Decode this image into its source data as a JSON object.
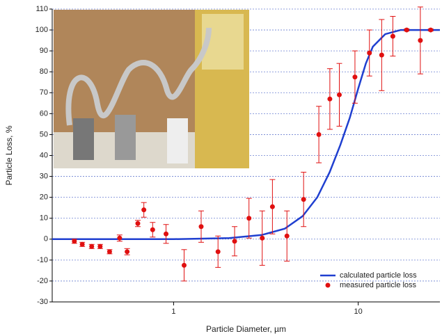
{
  "chart_data": {
    "type": "line",
    "x_label": "Particle Diameter, µm",
    "y_label": "Particle Loss, %",
    "xlim": [
      0.22,
      27.7
    ],
    "xscale": "log",
    "xticks": [
      1,
      10
    ],
    "ylim": [
      -30,
      110
    ],
    "yticks": [
      -30,
      -20,
      -10,
      0,
      10,
      20,
      30,
      40,
      50,
      60,
      70,
      80,
      90,
      100,
      110
    ],
    "grid": true,
    "legend": "lower right",
    "series": [
      {
        "name": "calculated particle loss",
        "type": "line",
        "color": "#1f3fd0",
        "x": [
          0.22,
          1,
          2,
          3,
          4,
          5,
          6,
          7,
          8,
          9,
          10,
          11,
          12,
          14,
          17,
          20,
          27.7
        ],
        "values": [
          0,
          0,
          0.5,
          2,
          5,
          11,
          20,
          32,
          45,
          58,
          72,
          84,
          92,
          98,
          100,
          100,
          100
        ]
      },
      {
        "name": "measured particle loss",
        "type": "scatter",
        "color": "#e01010",
        "x": [
          0.29,
          0.32,
          0.36,
          0.4,
          0.45,
          0.51,
          0.56,
          0.64,
          0.69,
          0.77,
          0.91,
          1.14,
          1.41,
          1.74,
          2.14,
          2.56,
          3.02,
          3.43,
          4.11,
          5.06,
          6.12,
          7.02,
          7.9,
          9.6,
          11.5,
          13.4,
          15.4,
          18.3,
          21.7,
          24.7
        ],
        "values": [
          -1,
          -2.5,
          -3.5,
          -3.5,
          -6,
          0.5,
          -6,
          7.5,
          14,
          4.5,
          2.5,
          -12.5,
          6,
          -6,
          -1,
          10,
          0.5,
          15.5,
          1.5,
          19,
          50,
          67,
          69,
          77.5,
          89,
          88,
          97,
          100,
          95,
          100
        ],
        "errors": [
          1,
          1,
          1,
          1,
          1,
          1.5,
          1.5,
          1.5,
          3.5,
          3.5,
          4.5,
          7.5,
          7.5,
          7.5,
          7,
          9.5,
          13,
          13,
          12,
          13,
          13.5,
          14.5,
          15,
          12.5,
          11,
          17,
          9.5,
          0.5,
          16,
          0.5
        ]
      }
    ]
  }
}
